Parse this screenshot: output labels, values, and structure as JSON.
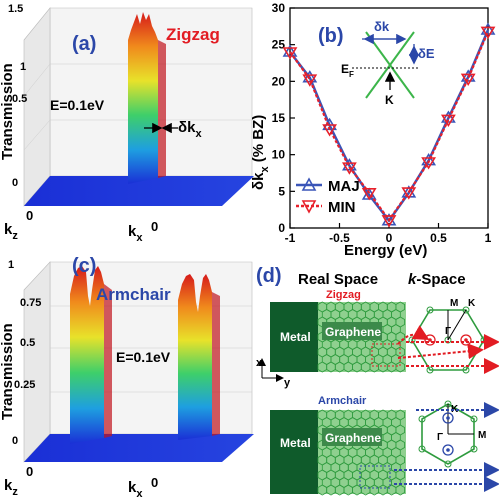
{
  "colors": {
    "blue_label": "#2b47a8",
    "red_label": "#e21c23",
    "maj": "#3a55b8",
    "min": "#e8202a",
    "metal": "#0f5b2b",
    "graphene": "#8fd08f",
    "lattice": "#2e9b3e",
    "arrow_red": "#e21c23",
    "arrow_blue": "#2b47a8"
  },
  "panel_a": {
    "letter": "(a)",
    "title": "Zigzag",
    "energy": "E=0.1eV",
    "delta_label": "δk",
    "delta_sub": "x",
    "ylabel": "Transmission",
    "zaxis_ticks": [
      "0",
      "0.5",
      "1",
      "1.5"
    ],
    "kz_label": "k",
    "kz_sub": "z",
    "kx_label": "k",
    "kx_sub": "x",
    "zero": "0"
  },
  "panel_b": {
    "letter": "(b)",
    "ylabel_main": "δk",
    "ylabel_sub": "x",
    "ylabel_rest": " (% BZ)",
    "xlabel": "Energy (eV)",
    "inset_dk": "δk",
    "inset_de": "δE",
    "inset_ef": "E",
    "inset_ef_sub": "F",
    "inset_k": "K",
    "legend": [
      "MAJ",
      "MIN"
    ]
  },
  "chart_data": {
    "type": "line",
    "x": [
      -1,
      -0.8,
      -0.6,
      -0.4,
      -0.2,
      0,
      0.2,
      0.4,
      0.6,
      0.8,
      1
    ],
    "series": [
      {
        "name": "MAJ",
        "values": [
          24,
          20.5,
          14,
          8.5,
          4.5,
          1,
          4.8,
          9.2,
          15,
          20.6,
          27
        ]
      },
      {
        "name": "MIN",
        "values": [
          24,
          20.3,
          13.5,
          8.3,
          4.8,
          1.1,
          4.9,
          9.0,
          14.8,
          20.4,
          26.8
        ]
      }
    ],
    "xlabel": "Energy (eV)",
    "ylabel": "δkx (% BZ)",
    "xlim": [
      -1,
      1
    ],
    "ylim": [
      0,
      30
    ],
    "xticks": [
      -1,
      -0.5,
      0,
      0.5,
      1
    ],
    "xtick_labels": [
      "-1",
      "-0.5",
      "0",
      "0.5",
      "1"
    ],
    "yticks": [
      0,
      5,
      10,
      15,
      20,
      25,
      30
    ],
    "legend_position": "bottom-left"
  },
  "panel_c": {
    "letter": "(c)",
    "title": "Armchair",
    "energy": "E=0.1eV",
    "ylabel": "Transmission",
    "zaxis_ticks": [
      "0",
      "0.25",
      "0.5",
      "0.75",
      "1"
    ],
    "kz_label": "k",
    "kz_sub": "z",
    "kx_label": "k",
    "kx_sub": "x",
    "zero": "0"
  },
  "panel_d": {
    "letter": "(d)",
    "real_space": "Real Space",
    "k_space_k": "k",
    "k_space_rest": "-Space",
    "zigzag": "Zigzag",
    "armchair": "Armchair",
    "metal": "Metal",
    "graphene": "Graphene",
    "x_axis": "x",
    "y_axis": "y",
    "zz_labels": {
      "m": "M",
      "k": "K",
      "gamma": "Γ"
    },
    "ac_labels": {
      "k": "K",
      "m": "M",
      "gamma": "Γ"
    }
  }
}
